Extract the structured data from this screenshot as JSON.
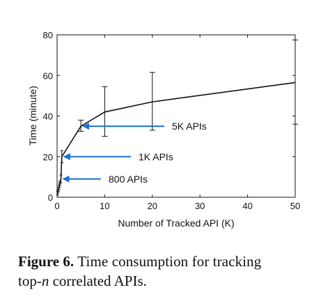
{
  "chart_data": {
    "type": "line",
    "xlabel": "Number of Tracked API (K)",
    "ylabel": "Time (minute)",
    "xlim": [
      0,
      50
    ],
    "ylim": [
      0,
      80
    ],
    "xticks": [
      0,
      10,
      20,
      30,
      40,
      50
    ],
    "yticks": [
      0,
      20,
      40,
      60,
      80
    ],
    "grid": false,
    "series": [
      {
        "color": "#111111",
        "points": [
          {
            "x": 0.1,
            "y": 2,
            "err_low": 1,
            "err_high": 3
          },
          {
            "x": 0.2,
            "y": 3,
            "err_low": 2,
            "err_high": 4
          },
          {
            "x": 0.3,
            "y": 4,
            "err_low": 3,
            "err_high": 5
          },
          {
            "x": 0.4,
            "y": 5,
            "err_low": 4,
            "err_high": 6
          },
          {
            "x": 0.5,
            "y": 6,
            "err_low": 5,
            "err_high": 7
          },
          {
            "x": 0.6,
            "y": 7,
            "err_low": 6,
            "err_high": 8
          },
          {
            "x": 0.8,
            "y": 9,
            "err_low": 7,
            "err_high": 11
          },
          {
            "x": 1,
            "y": 20,
            "err_low": 17,
            "err_high": 23
          },
          {
            "x": 5,
            "y": 35,
            "err_low": 32.5,
            "err_high": 38
          },
          {
            "x": 10,
            "y": 42,
            "err_low": 30,
            "err_high": 54.5
          },
          {
            "x": 20,
            "y": 47,
            "err_low": 33,
            "err_high": 61.5
          },
          {
            "x": 50,
            "y": 56.5,
            "err_low": 36,
            "err_high": 77.5
          }
        ]
      }
    ],
    "annotations": [
      {
        "text": "5K APIs",
        "arrow_to_x": 5,
        "arrow_to_y": 35,
        "color": "#1a6fd6"
      },
      {
        "text": "1K APIs",
        "arrow_to_x": 1,
        "arrow_to_y": 20,
        "color": "#1a6fd6"
      },
      {
        "text": "800 APIs",
        "arrow_to_x": 0.8,
        "arrow_to_y": 9,
        "color": "#1a6fd6"
      }
    ]
  },
  "caption": {
    "label": "Figure 6.",
    "line1": "Time consumption for tracking",
    "line2_pre": "top-",
    "line2_italic": "n",
    "line2_post": " correlated APIs."
  }
}
